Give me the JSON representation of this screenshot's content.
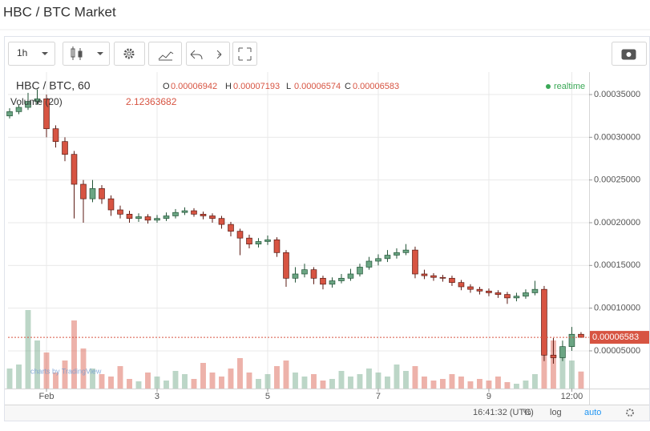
{
  "chart_data": {
    "type": "candlestick",
    "title": "HBC / BTC Market",
    "interval": "1h",
    "symbol": "HBC / BTC, 60",
    "x": [
      -16,
      -12,
      -8,
      -4,
      0,
      4,
      8,
      12,
      16,
      20,
      24,
      28,
      32,
      36,
      40,
      44,
      48,
      52,
      56,
      60,
      64,
      68,
      72,
      76,
      80,
      84,
      88,
      92,
      96,
      100,
      104,
      108,
      112,
      116,
      120,
      124,
      128,
      132,
      136,
      140,
      144,
      148,
      152,
      156,
      160,
      164,
      168,
      172,
      176,
      180,
      184,
      188,
      192,
      196,
      200,
      204,
      208,
      212,
      216,
      220,
      224,
      228,
      232
    ],
    "open": [
      0.000325,
      0.00033,
      0.000335,
      0.000342,
      0.000345,
      0.00031,
      0.000295,
      0.00028,
      0.000245,
      0.000228,
      0.00024,
      0.000228,
      0.000215,
      0.00021,
      0.000205,
      0.000207,
      0.000203,
      0.000205,
      0.000208,
      0.000212,
      0.000214,
      0.00021,
      0.000208,
      0.000205,
      0.000198,
      0.00019,
      0.000182,
      0.000175,
      0.000178,
      0.00018,
      0.000165,
      0.000135,
      0.00014,
      0.000145,
      0.000135,
      0.000128,
      0.000132,
      0.000135,
      0.00014,
      0.000148,
      0.000155,
      0.000158,
      0.000162,
      0.000165,
      0.000168,
      0.00014,
      0.000138,
      0.000136,
      0.000135,
      0.00013,
      0.000125,
      0.000122,
      0.00012,
      0.000118,
      0.000116,
      0.000112,
      0.000114,
      0.000118,
      0.000122,
      4.5e-05,
      4.2e-05,
      5.5e-05,
      6.942e-05
    ],
    "high": [
      0.000334,
      0.000338,
      0.000352,
      0.000356,
      0.00035,
      0.000314,
      0.0003,
      0.000284,
      0.00025,
      0.00025,
      0.000244,
      0.000232,
      0.00022,
      0.000214,
      0.000211,
      0.00021,
      0.000209,
      0.000212,
      0.000216,
      0.000218,
      0.000217,
      0.000213,
      0.000211,
      0.000208,
      0.000201,
      0.000193,
      0.000186,
      0.000182,
      0.000185,
      0.000183,
      0.000168,
      0.000148,
      0.000152,
      0.000148,
      0.000138,
      0.000136,
      0.00014,
      0.000146,
      0.000152,
      0.00016,
      0.000163,
      0.000168,
      0.00017,
      0.000175,
      0.000172,
      0.000145,
      0.000141,
      0.000139,
      0.000138,
      0.000133,
      0.000128,
      0.000125,
      0.000123,
      0.000121,
      0.000119,
      0.000118,
      0.000122,
      0.000132,
      0.000126,
      6.5e-05,
      6.2e-05,
      7.8e-05,
      7.193e-05
    ],
    "low": [
      0.000322,
      0.000327,
      0.000332,
      0.000338,
      0.0003,
      0.000288,
      0.000272,
      0.000205,
      0.0002,
      0.000224,
      0.000222,
      0.000208,
      0.000205,
      0.0002,
      0.000201,
      0.000199,
      0.0002,
      0.000202,
      0.000205,
      0.000209,
      0.000207,
      0.000204,
      0.0002,
      0.000193,
      0.000184,
      0.000162,
      0.00017,
      0.000171,
      0.000174,
      0.00016,
      0.000125,
      0.00013,
      0.000136,
      0.000128,
      0.000122,
      0.000124,
      0.000129,
      0.000132,
      0.000137,
      0.000145,
      0.00015,
      0.000154,
      0.000158,
      0.000162,
      0.000135,
      0.000134,
      0.000132,
      0.000131,
      0.000126,
      0.000121,
      0.000118,
      0.000116,
      0.000114,
      0.000112,
      0.000105,
      0.000108,
      0.000111,
      0.000115,
      3.8e-05,
      3.5e-05,
      3.8e-05,
      5e-05,
      6.574e-05
    ],
    "close": [
      0.00033,
      0.000335,
      0.000342,
      0.000345,
      0.00031,
      0.000295,
      0.00028,
      0.000245,
      0.000228,
      0.00024,
      0.000228,
      0.000215,
      0.00021,
      0.000205,
      0.000207,
      0.000203,
      0.000205,
      0.000208,
      0.000212,
      0.000214,
      0.00021,
      0.000208,
      0.000205,
      0.000198,
      0.00019,
      0.000182,
      0.000175,
      0.000178,
      0.00018,
      0.000165,
      0.000135,
      0.00014,
      0.000145,
      0.000135,
      0.000128,
      0.000132,
      0.000135,
      0.00014,
      0.000148,
      0.000155,
      0.000158,
      0.000162,
      0.000165,
      0.000168,
      0.00014,
      0.000138,
      0.000136,
      0.000135,
      0.00013,
      0.000125,
      0.000122,
      0.00012,
      0.000118,
      0.000116,
      0.000112,
      0.000114,
      0.000118,
      0.000122,
      4.5e-05,
      4.2e-05,
      5.5e-05,
      6.942e-05,
      6.583e-05
    ],
    "up_color": "#6ba583",
    "down_color": "#d75442",
    "volume": {
      "name": "Volume (20)",
      "y2lim": [
        0,
        10
      ],
      "values": [
        2.5,
        3.0,
        9.8,
        6.0,
        4.5,
        2.0,
        3.5,
        8.5,
        5.0,
        2.5,
        1.8,
        1.5,
        2.8,
        1.2,
        0.9,
        2.0,
        1.5,
        1.0,
        2.2,
        1.8,
        1.2,
        3.2,
        2.0,
        1.5,
        2.5,
        3.8,
        2.0,
        1.2,
        1.8,
        2.8,
        3.5,
        2.0,
        1.5,
        1.8,
        1.0,
        1.2,
        2.2,
        1.5,
        1.8,
        2.5,
        2.0,
        1.5,
        3.0,
        2.2,
        2.8,
        1.5,
        1.0,
        1.2,
        1.8,
        1.5,
        0.9,
        1.2,
        1.0,
        1.5,
        0.8,
        0.6,
        1.0,
        1.8,
        7.0,
        6.0,
        5.0,
        3.5,
        2.12363682
      ]
    },
    "xlim": [
      -16.7,
      235.5
    ],
    "xticks": [
      {
        "value": 0,
        "label": "Feb"
      },
      {
        "value": 48,
        "label": "3"
      },
      {
        "value": 96,
        "label": "5"
      },
      {
        "value": 144,
        "label": "7"
      },
      {
        "value": 192,
        "label": "9"
      },
      {
        "value": 228,
        "label": "12:00"
      }
    ],
    "ylim": [
      5.9e-06,
      0.0003716
    ],
    "yticks": [
      {
        "value": 5e-05,
        "label": "0.00005000"
      },
      {
        "value": 0.0001,
        "label": "0.00010000"
      },
      {
        "value": 0.00015,
        "label": "0.00015000"
      },
      {
        "value": 0.0002,
        "label": "0.00020000"
      },
      {
        "value": 0.00025,
        "label": "0.00025000"
      },
      {
        "value": 0.0003,
        "label": "0.00030000"
      },
      {
        "value": 0.00035,
        "label": "0.00035000"
      }
    ],
    "grid": true,
    "last_price": {
      "value": 6.583e-05,
      "label": "0.00006583"
    },
    "ohlc_legend": [
      {
        "key": "O",
        "label": "0.00006942"
      },
      {
        "key": "H",
        "label": "0.00007193"
      },
      {
        "key": "L",
        "label": "0.00006574"
      },
      {
        "key": "C",
        "label": "0.00006583"
      }
    ],
    "status": "realtime",
    "time": "16:41:32 (UTC)",
    "controls": [
      "%",
      "log",
      "auto"
    ],
    "watermark": "charts by TradingView"
  }
}
